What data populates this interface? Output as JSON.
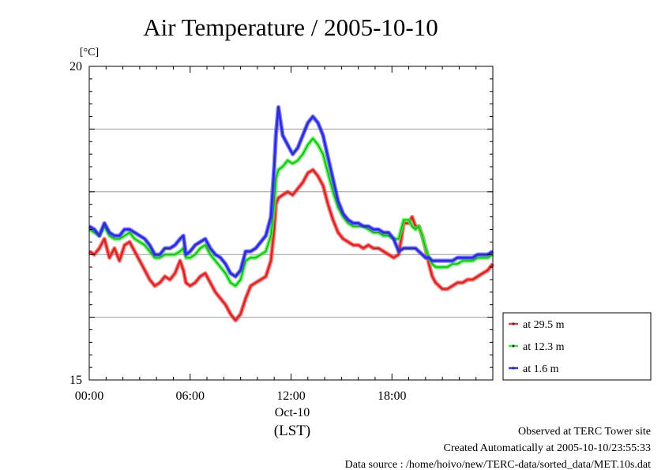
{
  "chart_data": {
    "type": "line",
    "title": "Air Temperature / 2005-10-10",
    "yunit": "[°C]",
    "ylim": [
      15,
      20
    ],
    "yticks": [
      "15",
      "20"
    ],
    "xlim": [
      0,
      24
    ],
    "xticks": [
      {
        "hour": 0,
        "label": "00:00"
      },
      {
        "hour": 6,
        "label": "06:00"
      },
      {
        "hour": 12,
        "label": "12:00"
      },
      {
        "hour": 18,
        "label": "18:00"
      }
    ],
    "xdate": "Oct-10",
    "xlabel": "(LST)",
    "grid": true,
    "legend_position": "right-bottom",
    "series": [
      {
        "name": "at 29.5 m",
        "color": "#ff3333",
        "x": [
          0,
          0.3,
          0.6,
          0.9,
          1.2,
          1.5,
          1.8,
          2.1,
          2.4,
          2.7,
          3.0,
          3.3,
          3.6,
          3.9,
          4.2,
          4.5,
          4.8,
          5.1,
          5.4,
          5.6,
          5.75,
          6.0,
          6.3,
          6.6,
          6.9,
          7.2,
          7.5,
          7.8,
          8.1,
          8.4,
          8.7,
          9.0,
          9.3,
          9.6,
          9.9,
          10.2,
          10.5,
          10.8,
          11.0,
          11.1,
          11.25,
          11.5,
          11.8,
          12.1,
          12.4,
          12.7,
          13.0,
          13.3,
          13.6,
          13.9,
          14.2,
          14.5,
          14.8,
          15.1,
          15.4,
          15.7,
          16.0,
          16.3,
          16.6,
          16.9,
          17.2,
          17.5,
          17.8,
          18.1,
          18.4,
          18.7,
          19.0,
          19.2,
          19.4,
          19.6,
          19.8,
          20.0,
          20.2,
          20.4,
          20.6,
          20.8,
          21.0,
          21.3,
          21.6,
          21.9,
          22.2,
          22.5,
          22.8,
          23.1,
          23.4,
          23.7,
          24.0
        ],
        "y": [
          17.05,
          17.0,
          17.1,
          17.25,
          16.95,
          17.1,
          16.9,
          17.15,
          17.2,
          17.05,
          16.9,
          16.75,
          16.6,
          16.5,
          16.55,
          16.65,
          16.6,
          16.7,
          16.9,
          16.75,
          16.55,
          16.5,
          16.55,
          16.65,
          16.7,
          16.55,
          16.4,
          16.3,
          16.2,
          16.05,
          15.95,
          16.05,
          16.3,
          16.5,
          16.55,
          16.6,
          16.65,
          16.9,
          17.4,
          17.8,
          17.9,
          17.95,
          18.0,
          17.95,
          18.05,
          18.15,
          18.3,
          18.35,
          18.25,
          18.1,
          17.8,
          17.55,
          17.35,
          17.25,
          17.2,
          17.15,
          17.15,
          17.1,
          17.15,
          17.1,
          17.1,
          17.05,
          17.0,
          16.95,
          17.0,
          17.5,
          17.5,
          17.6,
          17.45,
          17.45,
          17.3,
          17.1,
          16.85,
          16.65,
          16.55,
          16.5,
          16.45,
          16.45,
          16.5,
          16.55,
          16.55,
          16.6,
          16.6,
          16.65,
          16.7,
          16.75,
          16.85
        ]
      },
      {
        "name": "at 12.3 m",
        "color": "#33ee33",
        "x": [
          0,
          0.3,
          0.6,
          0.9,
          1.2,
          1.5,
          1.8,
          2.1,
          2.4,
          2.7,
          3.0,
          3.3,
          3.6,
          3.9,
          4.2,
          4.5,
          4.8,
          5.1,
          5.4,
          5.6,
          5.75,
          6.0,
          6.3,
          6.6,
          6.9,
          7.2,
          7.5,
          7.8,
          8.1,
          8.4,
          8.7,
          9.0,
          9.3,
          9.6,
          9.9,
          10.2,
          10.5,
          10.8,
          11.0,
          11.1,
          11.25,
          11.5,
          11.8,
          12.1,
          12.4,
          12.7,
          13.0,
          13.3,
          13.6,
          13.9,
          14.2,
          14.5,
          14.8,
          15.1,
          15.4,
          15.7,
          16.0,
          16.3,
          16.6,
          16.9,
          17.2,
          17.5,
          17.8,
          18.1,
          18.4,
          18.7,
          19.0,
          19.2,
          19.4,
          19.6,
          19.8,
          20.0,
          20.2,
          20.4,
          20.6,
          20.8,
          21.0,
          21.3,
          21.6,
          21.9,
          22.2,
          22.5,
          22.8,
          23.1,
          23.4,
          23.7,
          24.0
        ],
        "y": [
          17.4,
          17.35,
          17.3,
          17.45,
          17.3,
          17.25,
          17.25,
          17.3,
          17.35,
          17.25,
          17.2,
          17.15,
          17.05,
          16.95,
          16.95,
          17.0,
          17.0,
          17.0,
          17.05,
          17.1,
          16.95,
          16.95,
          17.0,
          17.1,
          17.15,
          17.0,
          16.9,
          16.8,
          16.7,
          16.55,
          16.5,
          16.6,
          16.9,
          16.95,
          16.95,
          17.0,
          17.05,
          17.3,
          17.8,
          18.2,
          18.35,
          18.4,
          18.5,
          18.45,
          18.5,
          18.6,
          18.75,
          18.85,
          18.75,
          18.6,
          18.3,
          18.0,
          17.75,
          17.6,
          17.5,
          17.45,
          17.45,
          17.45,
          17.4,
          17.35,
          17.35,
          17.3,
          17.3,
          17.25,
          17.25,
          17.55,
          17.55,
          17.45,
          17.4,
          17.45,
          17.3,
          17.1,
          16.95,
          16.85,
          16.8,
          16.8,
          16.8,
          16.8,
          16.85,
          16.85,
          16.9,
          16.9,
          16.9,
          16.95,
          16.95,
          16.95,
          17.0
        ]
      },
      {
        "name": "at 1.6 m",
        "color": "#3333ff",
        "x": [
          0,
          0.3,
          0.6,
          0.9,
          1.2,
          1.5,
          1.8,
          2.1,
          2.4,
          2.7,
          3.0,
          3.3,
          3.6,
          3.9,
          4.2,
          4.5,
          4.8,
          5.1,
          5.4,
          5.6,
          5.75,
          6.0,
          6.3,
          6.6,
          6.9,
          7.2,
          7.5,
          7.8,
          8.1,
          8.4,
          8.7,
          9.0,
          9.3,
          9.6,
          9.9,
          10.2,
          10.5,
          10.8,
          11.0,
          11.1,
          11.25,
          11.5,
          11.8,
          12.1,
          12.4,
          12.7,
          13.0,
          13.3,
          13.6,
          13.9,
          14.2,
          14.5,
          14.8,
          15.1,
          15.4,
          15.7,
          16.0,
          16.3,
          16.6,
          16.9,
          17.2,
          17.5,
          17.8,
          18.1,
          18.4,
          18.7,
          19.0,
          19.2,
          19.4,
          19.6,
          19.8,
          20.0,
          20.2,
          20.4,
          20.6,
          20.8,
          21.0,
          21.3,
          21.6,
          21.9,
          22.2,
          22.5,
          22.8,
          23.1,
          23.4,
          23.7,
          24.0
        ],
        "y": [
          17.45,
          17.4,
          17.3,
          17.5,
          17.35,
          17.3,
          17.3,
          17.4,
          17.4,
          17.35,
          17.3,
          17.25,
          17.15,
          17.0,
          17.0,
          17.1,
          17.1,
          17.15,
          17.25,
          17.3,
          17.0,
          17.05,
          17.15,
          17.2,
          17.25,
          17.1,
          17.0,
          16.95,
          16.85,
          16.7,
          16.65,
          16.75,
          17.05,
          17.05,
          17.1,
          17.2,
          17.3,
          17.6,
          18.4,
          18.9,
          19.35,
          18.9,
          18.75,
          18.6,
          18.7,
          18.9,
          19.1,
          19.2,
          19.1,
          18.9,
          18.55,
          18.2,
          17.85,
          17.65,
          17.55,
          17.5,
          17.5,
          17.45,
          17.45,
          17.4,
          17.4,
          17.35,
          17.35,
          17.25,
          17.05,
          17.1,
          17.1,
          17.1,
          17.1,
          17.05,
          17.0,
          16.95,
          16.95,
          16.9,
          16.9,
          16.9,
          16.9,
          16.9,
          16.9,
          16.95,
          16.95,
          16.95,
          16.95,
          17.0,
          17.0,
          17.0,
          17.05
        ]
      }
    ]
  },
  "footer": {
    "line1": "Observed at TERC Tower site",
    "line2": "Created Automatically at 2005-10-10/23:55:33",
    "line3": "Data source : /home/hoivo/new/TERC-data/sorted_data/MET.10s.dat"
  }
}
